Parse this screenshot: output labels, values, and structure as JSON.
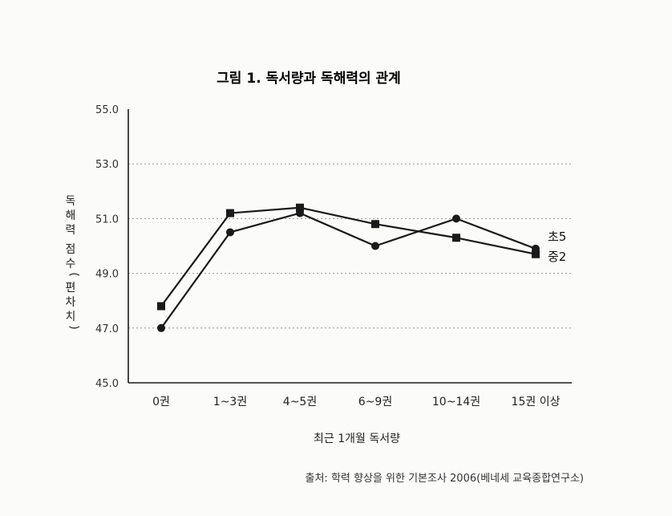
{
  "chart_data": {
    "type": "line",
    "title": "그림 1. 독서량과 독해력의 관계",
    "xlabel": "최근 1개월 독서량",
    "ylabel": "독해력 점수(편차치)",
    "categories": [
      "0권",
      "1~3권",
      "4~5권",
      "6~9권",
      "10~14권",
      "15권 이상"
    ],
    "yticks": [
      "45.0",
      "47.0",
      "49.0",
      "51.0",
      "53.0",
      "55.0"
    ],
    "ylim": [
      45,
      55
    ],
    "grid": true,
    "series": [
      {
        "name": "중2",
        "marker": "square",
        "values": [
          47.8,
          51.2,
          51.4,
          50.8,
          50.3,
          49.7
        ]
      },
      {
        "name": "초5",
        "marker": "circle",
        "values": [
          47.0,
          50.5,
          51.2,
          50.0,
          51.0,
          49.9
        ]
      }
    ],
    "source": "출처: 학력 향상을 위한 기본조사 2006(베네세 교육종합연구소)"
  },
  "colors": {
    "line": "#1a1a1a",
    "grid": "#9a9a9a",
    "axis": "#1a1a1a"
  }
}
